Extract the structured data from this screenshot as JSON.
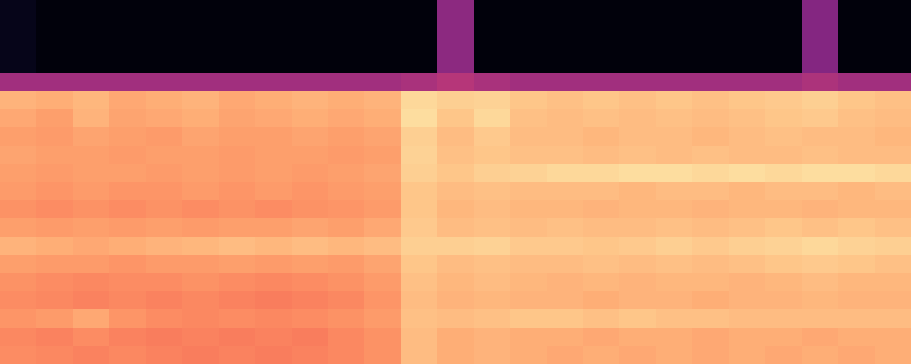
{
  "chart_data": {
    "type": "heatmap",
    "color": "magma",
    "tick_labels": false,
    "zlim": [
      0,
      1
    ],
    "cells": [
      [
        0.05,
        0.02,
        0.02,
        0.02,
        0.02,
        0.02,
        0.02,
        0.02,
        0.02,
        0.02,
        0.02,
        0.02,
        0.4,
        0.02,
        0.02,
        0.02,
        0.02,
        0.02,
        0.02,
        0.02,
        0.02,
        0.02,
        0.38,
        0.02,
        0.02
      ],
      [
        0.05,
        0.02,
        0.02,
        0.02,
        0.02,
        0.02,
        0.02,
        0.02,
        0.02,
        0.02,
        0.02,
        0.02,
        0.4,
        0.02,
        0.02,
        0.02,
        0.02,
        0.02,
        0.02,
        0.02,
        0.02,
        0.02,
        0.38,
        0.02,
        0.02
      ],
      [
        0.05,
        0.02,
        0.02,
        0.02,
        0.02,
        0.02,
        0.02,
        0.02,
        0.02,
        0.02,
        0.02,
        0.02,
        0.4,
        0.02,
        0.02,
        0.02,
        0.02,
        0.02,
        0.02,
        0.02,
        0.02,
        0.02,
        0.38,
        0.02,
        0.02
      ],
      [
        0.05,
        0.02,
        0.02,
        0.02,
        0.02,
        0.02,
        0.02,
        0.02,
        0.02,
        0.02,
        0.02,
        0.02,
        0.4,
        0.02,
        0.02,
        0.02,
        0.02,
        0.02,
        0.02,
        0.02,
        0.02,
        0.02,
        0.38,
        0.02,
        0.02
      ],
      [
        0.45,
        0.45,
        0.45,
        0.45,
        0.45,
        0.45,
        0.45,
        0.45,
        0.45,
        0.45,
        0.45,
        0.47,
        0.5,
        0.47,
        0.45,
        0.45,
        0.45,
        0.45,
        0.45,
        0.45,
        0.45,
        0.45,
        0.48,
        0.45,
        0.45
      ],
      [
        0.84,
        0.83,
        0.85,
        0.82,
        0.83,
        0.84,
        0.82,
        0.83,
        0.84,
        0.83,
        0.84,
        0.92,
        0.9,
        0.91,
        0.88,
        0.87,
        0.88,
        0.87,
        0.88,
        0.87,
        0.88,
        0.89,
        0.9,
        0.88,
        0.87
      ],
      [
        0.82,
        0.8,
        0.84,
        0.81,
        0.82,
        0.83,
        0.81,
        0.82,
        0.83,
        0.82,
        0.83,
        0.93,
        0.88,
        0.92,
        0.87,
        0.86,
        0.87,
        0.86,
        0.87,
        0.86,
        0.87,
        0.88,
        0.89,
        0.87,
        0.86
      ],
      [
        0.8,
        0.79,
        0.81,
        0.8,
        0.79,
        0.81,
        0.8,
        0.8,
        0.81,
        0.8,
        0.81,
        0.9,
        0.86,
        0.89,
        0.86,
        0.86,
        0.85,
        0.86,
        0.86,
        0.85,
        0.86,
        0.87,
        0.86,
        0.86,
        0.85
      ],
      [
        0.81,
        0.8,
        0.8,
        0.79,
        0.8,
        0.8,
        0.79,
        0.8,
        0.8,
        0.79,
        0.8,
        0.91,
        0.87,
        0.88,
        0.87,
        0.87,
        0.86,
        0.87,
        0.86,
        0.87,
        0.86,
        0.86,
        0.87,
        0.86,
        0.86
      ],
      [
        0.8,
        0.79,
        0.8,
        0.8,
        0.79,
        0.8,
        0.79,
        0.8,
        0.79,
        0.8,
        0.81,
        0.9,
        0.88,
        0.9,
        0.91,
        0.92,
        0.92,
        0.93,
        0.93,
        0.92,
        0.93,
        0.92,
        0.93,
        0.93,
        0.92
      ],
      [
        0.79,
        0.78,
        0.79,
        0.78,
        0.78,
        0.79,
        0.78,
        0.79,
        0.78,
        0.79,
        0.8,
        0.88,
        0.86,
        0.87,
        0.86,
        0.86,
        0.86,
        0.85,
        0.86,
        0.86,
        0.85,
        0.86,
        0.86,
        0.85,
        0.86
      ],
      [
        0.77,
        0.76,
        0.77,
        0.76,
        0.77,
        0.76,
        0.77,
        0.76,
        0.77,
        0.78,
        0.79,
        0.88,
        0.85,
        0.86,
        0.85,
        0.85,
        0.84,
        0.85,
        0.85,
        0.84,
        0.85,
        0.85,
        0.84,
        0.85,
        0.85
      ],
      [
        0.8,
        0.79,
        0.8,
        0.79,
        0.8,
        0.79,
        0.8,
        0.8,
        0.81,
        0.8,
        0.82,
        0.89,
        0.86,
        0.87,
        0.86,
        0.87,
        0.86,
        0.86,
        0.87,
        0.86,
        0.87,
        0.88,
        0.87,
        0.88,
        0.87
      ],
      [
        0.84,
        0.83,
        0.82,
        0.83,
        0.84,
        0.85,
        0.86,
        0.85,
        0.86,
        0.85,
        0.86,
        0.9,
        0.9,
        0.91,
        0.89,
        0.89,
        0.88,
        0.89,
        0.9,
        0.89,
        0.9,
        0.91,
        0.92,
        0.91,
        0.9
      ],
      [
        0.8,
        0.79,
        0.79,
        0.78,
        0.79,
        0.79,
        0.8,
        0.79,
        0.8,
        0.79,
        0.81,
        0.88,
        0.86,
        0.87,
        0.86,
        0.86,
        0.87,
        0.86,
        0.87,
        0.86,
        0.87,
        0.88,
        0.89,
        0.88,
        0.87
      ],
      [
        0.77,
        0.76,
        0.75,
        0.76,
        0.76,
        0.77,
        0.76,
        0.75,
        0.76,
        0.77,
        0.79,
        0.87,
        0.85,
        0.86,
        0.85,
        0.84,
        0.85,
        0.84,
        0.85,
        0.85,
        0.84,
        0.85,
        0.86,
        0.85,
        0.85
      ],
      [
        0.76,
        0.75,
        0.74,
        0.75,
        0.74,
        0.75,
        0.74,
        0.73,
        0.74,
        0.75,
        0.78,
        0.86,
        0.84,
        0.85,
        0.84,
        0.84,
        0.83,
        0.84,
        0.84,
        0.83,
        0.84,
        0.84,
        0.85,
        0.84,
        0.84
      ],
      [
        0.78,
        0.79,
        0.82,
        0.78,
        0.76,
        0.75,
        0.76,
        0.75,
        0.76,
        0.77,
        0.79,
        0.87,
        0.86,
        0.87,
        0.88,
        0.88,
        0.87,
        0.88,
        0.87,
        0.87,
        0.86,
        0.86,
        0.86,
        0.86,
        0.86
      ],
      [
        0.75,
        0.74,
        0.76,
        0.74,
        0.73,
        0.74,
        0.73,
        0.74,
        0.73,
        0.75,
        0.77,
        0.86,
        0.83,
        0.84,
        0.83,
        0.83,
        0.82,
        0.83,
        0.83,
        0.82,
        0.83,
        0.83,
        0.82,
        0.83,
        0.83
      ],
      [
        0.76,
        0.75,
        0.74,
        0.75,
        0.74,
        0.73,
        0.74,
        0.73,
        0.74,
        0.75,
        0.77,
        0.86,
        0.83,
        0.84,
        0.83,
        0.82,
        0.83,
        0.82,
        0.83,
        0.82,
        0.83,
        0.82,
        0.83,
        0.82,
        0.83
      ]
    ]
  }
}
